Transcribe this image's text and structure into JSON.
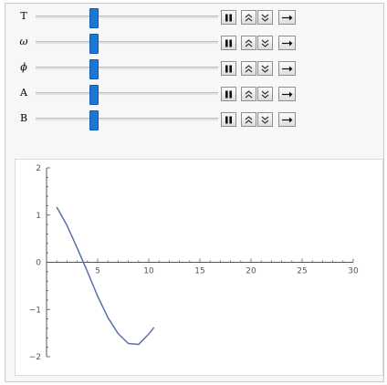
{
  "controls": [
    {
      "label": "T",
      "italic": false,
      "position": 0.32
    },
    {
      "label": "ω",
      "italic": true,
      "position": 0.32
    },
    {
      "label": "ϕ",
      "italic": true,
      "position": 0.32
    },
    {
      "label": "A",
      "italic": false,
      "position": 0.32
    },
    {
      "label": "B",
      "italic": false,
      "position": 0.32
    }
  ],
  "button_icons": [
    "pause-icon",
    "faster-icon",
    "slower-icon",
    "direction-icon"
  ],
  "colors": {
    "slider_thumb": "#1a77d6",
    "curve": "#5b6fa8",
    "axis": "#555555"
  },
  "chart_data": {
    "type": "line",
    "title": "",
    "xlabel": "",
    "ylabel": "",
    "xlim": [
      0,
      30
    ],
    "ylim": [
      -2,
      2
    ],
    "x_ticks": [
      "5",
      "10",
      "15",
      "20",
      "25",
      "30"
    ],
    "y_ticks": [
      "2",
      "1",
      "0",
      "-1",
      "-2"
    ],
    "grid": false,
    "series": [
      {
        "x": [
          1,
          2,
          3,
          4,
          5,
          6,
          7,
          8,
          9,
          10,
          10.5
        ],
        "y": [
          1.17,
          0.78,
          0.3,
          -0.2,
          -0.72,
          -1.17,
          -1.51,
          -1.72,
          -1.74,
          -1.52,
          -1.38
        ]
      }
    ]
  }
}
